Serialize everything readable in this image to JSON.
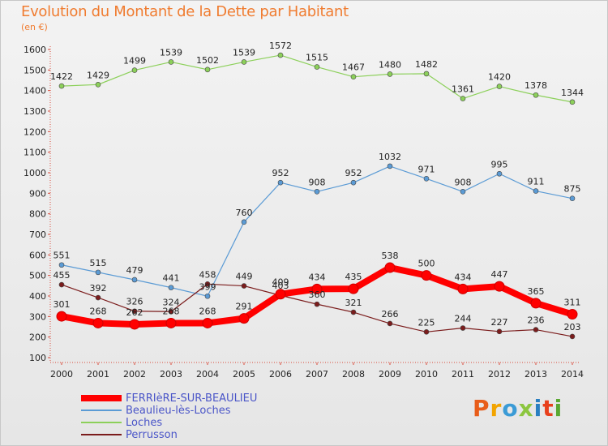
{
  "header": {
    "title": "Evolution du Montant de la Dette par Habitant",
    "unit": "(en €)"
  },
  "brand": {
    "text": "Proxiti",
    "colors": [
      "#e85d1a",
      "#f2a400",
      "#3b9bd6",
      "#8cc63f",
      "#2a7fc1",
      "#e8401c",
      "#5aa832"
    ]
  },
  "chart_data": {
    "type": "line",
    "title": "Evolution du Montant de la Dette par Habitant",
    "unit": "(en €)",
    "ylim": [
      100,
      1600
    ],
    "yticks": [
      100,
      200,
      300,
      400,
      500,
      600,
      700,
      800,
      900,
      1000,
      1100,
      1200,
      1300,
      1400,
      1500,
      1600
    ],
    "x": [
      "2000",
      "2001",
      "2002",
      "2003",
      "2004",
      "2005",
      "2006",
      "2007",
      "2008",
      "2009",
      "2010",
      "2011",
      "2012",
      "2013",
      "2014"
    ],
    "grid": false,
    "legend_position": "bottom-left",
    "series": [
      {
        "name": "FERRIèRE-SUR-BEAULIEU",
        "color": "#ff0000",
        "emphasis": true,
        "values": [
          301,
          268,
          262,
          268,
          268,
          291,
          409,
          434,
          435,
          538,
          500,
          434,
          447,
          365,
          311
        ],
        "labels": [
          "301",
          "268",
          "262",
          "268",
          "268",
          "291",
          "409",
          "434",
          "435",
          "538",
          "500",
          "434",
          "447",
          "365",
          "311"
        ]
      },
      {
        "name": "Beaulieu-lès-Loches",
        "color": "#5b9bd5",
        "emphasis": false,
        "values": [
          551,
          515,
          479,
          441,
          399,
          760,
          952,
          908,
          952,
          1032,
          971,
          908,
          995,
          911,
          875
        ],
        "labels": [
          "551",
          "515",
          "479",
          "441",
          "399",
          "760",
          "952",
          "908",
          "952",
          "1032",
          "971",
          "908",
          "995",
          "911",
          "875"
        ]
      },
      {
        "name": "Loches",
        "color": "#8cd05a",
        "emphasis": false,
        "values": [
          1422,
          1429,
          1499,
          1539,
          1502,
          1539,
          1572,
          1515,
          1467,
          1480,
          1482,
          1361,
          1420,
          1378,
          1344
        ],
        "labels": [
          "1422",
          "1429",
          "1499",
          "1539",
          "1502",
          "1539",
          "1572",
          "1515",
          "1467",
          "1480",
          "1482",
          "1361",
          "1420",
          "1378",
          "1344"
        ]
      },
      {
        "name": "Perrusson",
        "color": "#7b1c1c",
        "emphasis": false,
        "values": [
          455,
          392,
          326,
          324,
          458,
          449,
          403,
          360,
          321,
          266,
          225,
          244,
          227,
          236,
          203
        ],
        "labels": [
          "455",
          "392",
          "326",
          "324",
          "458",
          "449",
          "403",
          "360",
          "321",
          "266",
          "225",
          "244",
          "227",
          "236",
          "203"
        ]
      }
    ]
  }
}
